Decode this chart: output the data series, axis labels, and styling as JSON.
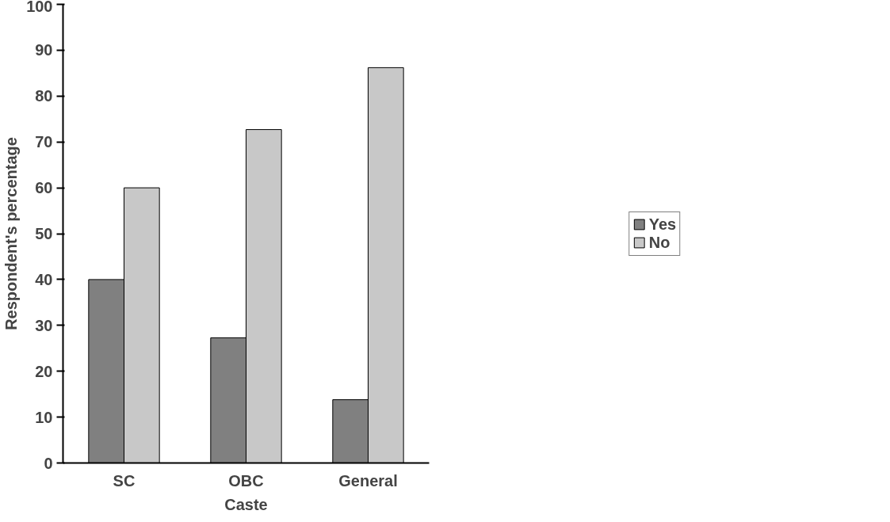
{
  "chart_data": {
    "type": "bar",
    "xlabel": "Caste",
    "ylabel": "Respondent's percentage",
    "categories": [
      "SC",
      "OBC",
      "General"
    ],
    "series": [
      {
        "name": "Yes",
        "color": "#808080",
        "values": [
          40,
          27.3,
          13.8
        ]
      },
      {
        "name": "No",
        "color": "#c8c8c8",
        "values": [
          60,
          72.7,
          86.2
        ]
      }
    ],
    "ylim": [
      0,
      100
    ],
    "yticks": [
      0,
      10,
      20,
      30,
      40,
      50,
      60,
      70,
      80,
      90,
      100
    ],
    "grid": false,
    "legend": "right"
  }
}
